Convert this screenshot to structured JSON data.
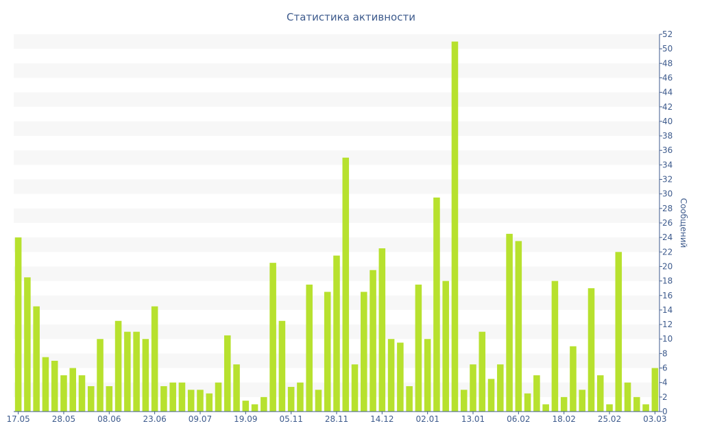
{
  "chart_data": {
    "type": "bar",
    "title": "Статистика активности",
    "ylabel": "Сообщений",
    "xlabel": "",
    "ylim": [
      0,
      52
    ],
    "y_ticks": [
      0,
      2,
      4,
      6,
      8,
      10,
      12,
      14,
      16,
      18,
      20,
      22,
      24,
      26,
      28,
      30,
      32,
      34,
      36,
      38,
      40,
      42,
      44,
      46,
      48,
      50,
      52
    ],
    "x_tick_labels": [
      {
        "index": 0,
        "label": "17.05"
      },
      {
        "index": 5,
        "label": "28.05"
      },
      {
        "index": 10,
        "label": "08.06"
      },
      {
        "index": 15,
        "label": "23.06"
      },
      {
        "index": 20,
        "label": "09.07"
      },
      {
        "index": 25,
        "label": "19.09"
      },
      {
        "index": 30,
        "label": "05.11"
      },
      {
        "index": 35,
        "label": "28.11"
      },
      {
        "index": 40,
        "label": "14.12"
      },
      {
        "index": 45,
        "label": "02.01"
      },
      {
        "index": 50,
        "label": "13.01"
      },
      {
        "index": 55,
        "label": "06.02"
      },
      {
        "index": 60,
        "label": "18.02"
      },
      {
        "index": 65,
        "label": "25.02"
      },
      {
        "index": 70,
        "label": "03.03"
      }
    ],
    "values": [
      24,
      18.5,
      14.5,
      7.5,
      7,
      5,
      6,
      5,
      3.5,
      10,
      3.5,
      12.5,
      11,
      11,
      10,
      14.5,
      3.5,
      4,
      4,
      3,
      3,
      2.5,
      4,
      10.5,
      6.5,
      1.5,
      1,
      2,
      20.5,
      12.5,
      3.4,
      4,
      17.5,
      3,
      16.5,
      21.5,
      35,
      6.5,
      16.5,
      19.5,
      22.5,
      10,
      9.5,
      3.5,
      17.5,
      10,
      29.5,
      18,
      51,
      3,
      6.5,
      11,
      4.5,
      6.5,
      24.5,
      23.5,
      2.5,
      5,
      1,
      18,
      2,
      9,
      3,
      17,
      5,
      1,
      22,
      4,
      2,
      1,
      6
    ],
    "colors": {
      "bar": "#b7e12e",
      "band": "#f7f7f7",
      "text": "#3d5a8c",
      "axis": "#3d5a8c"
    },
    "grid": "alternating horizontal bands"
  }
}
